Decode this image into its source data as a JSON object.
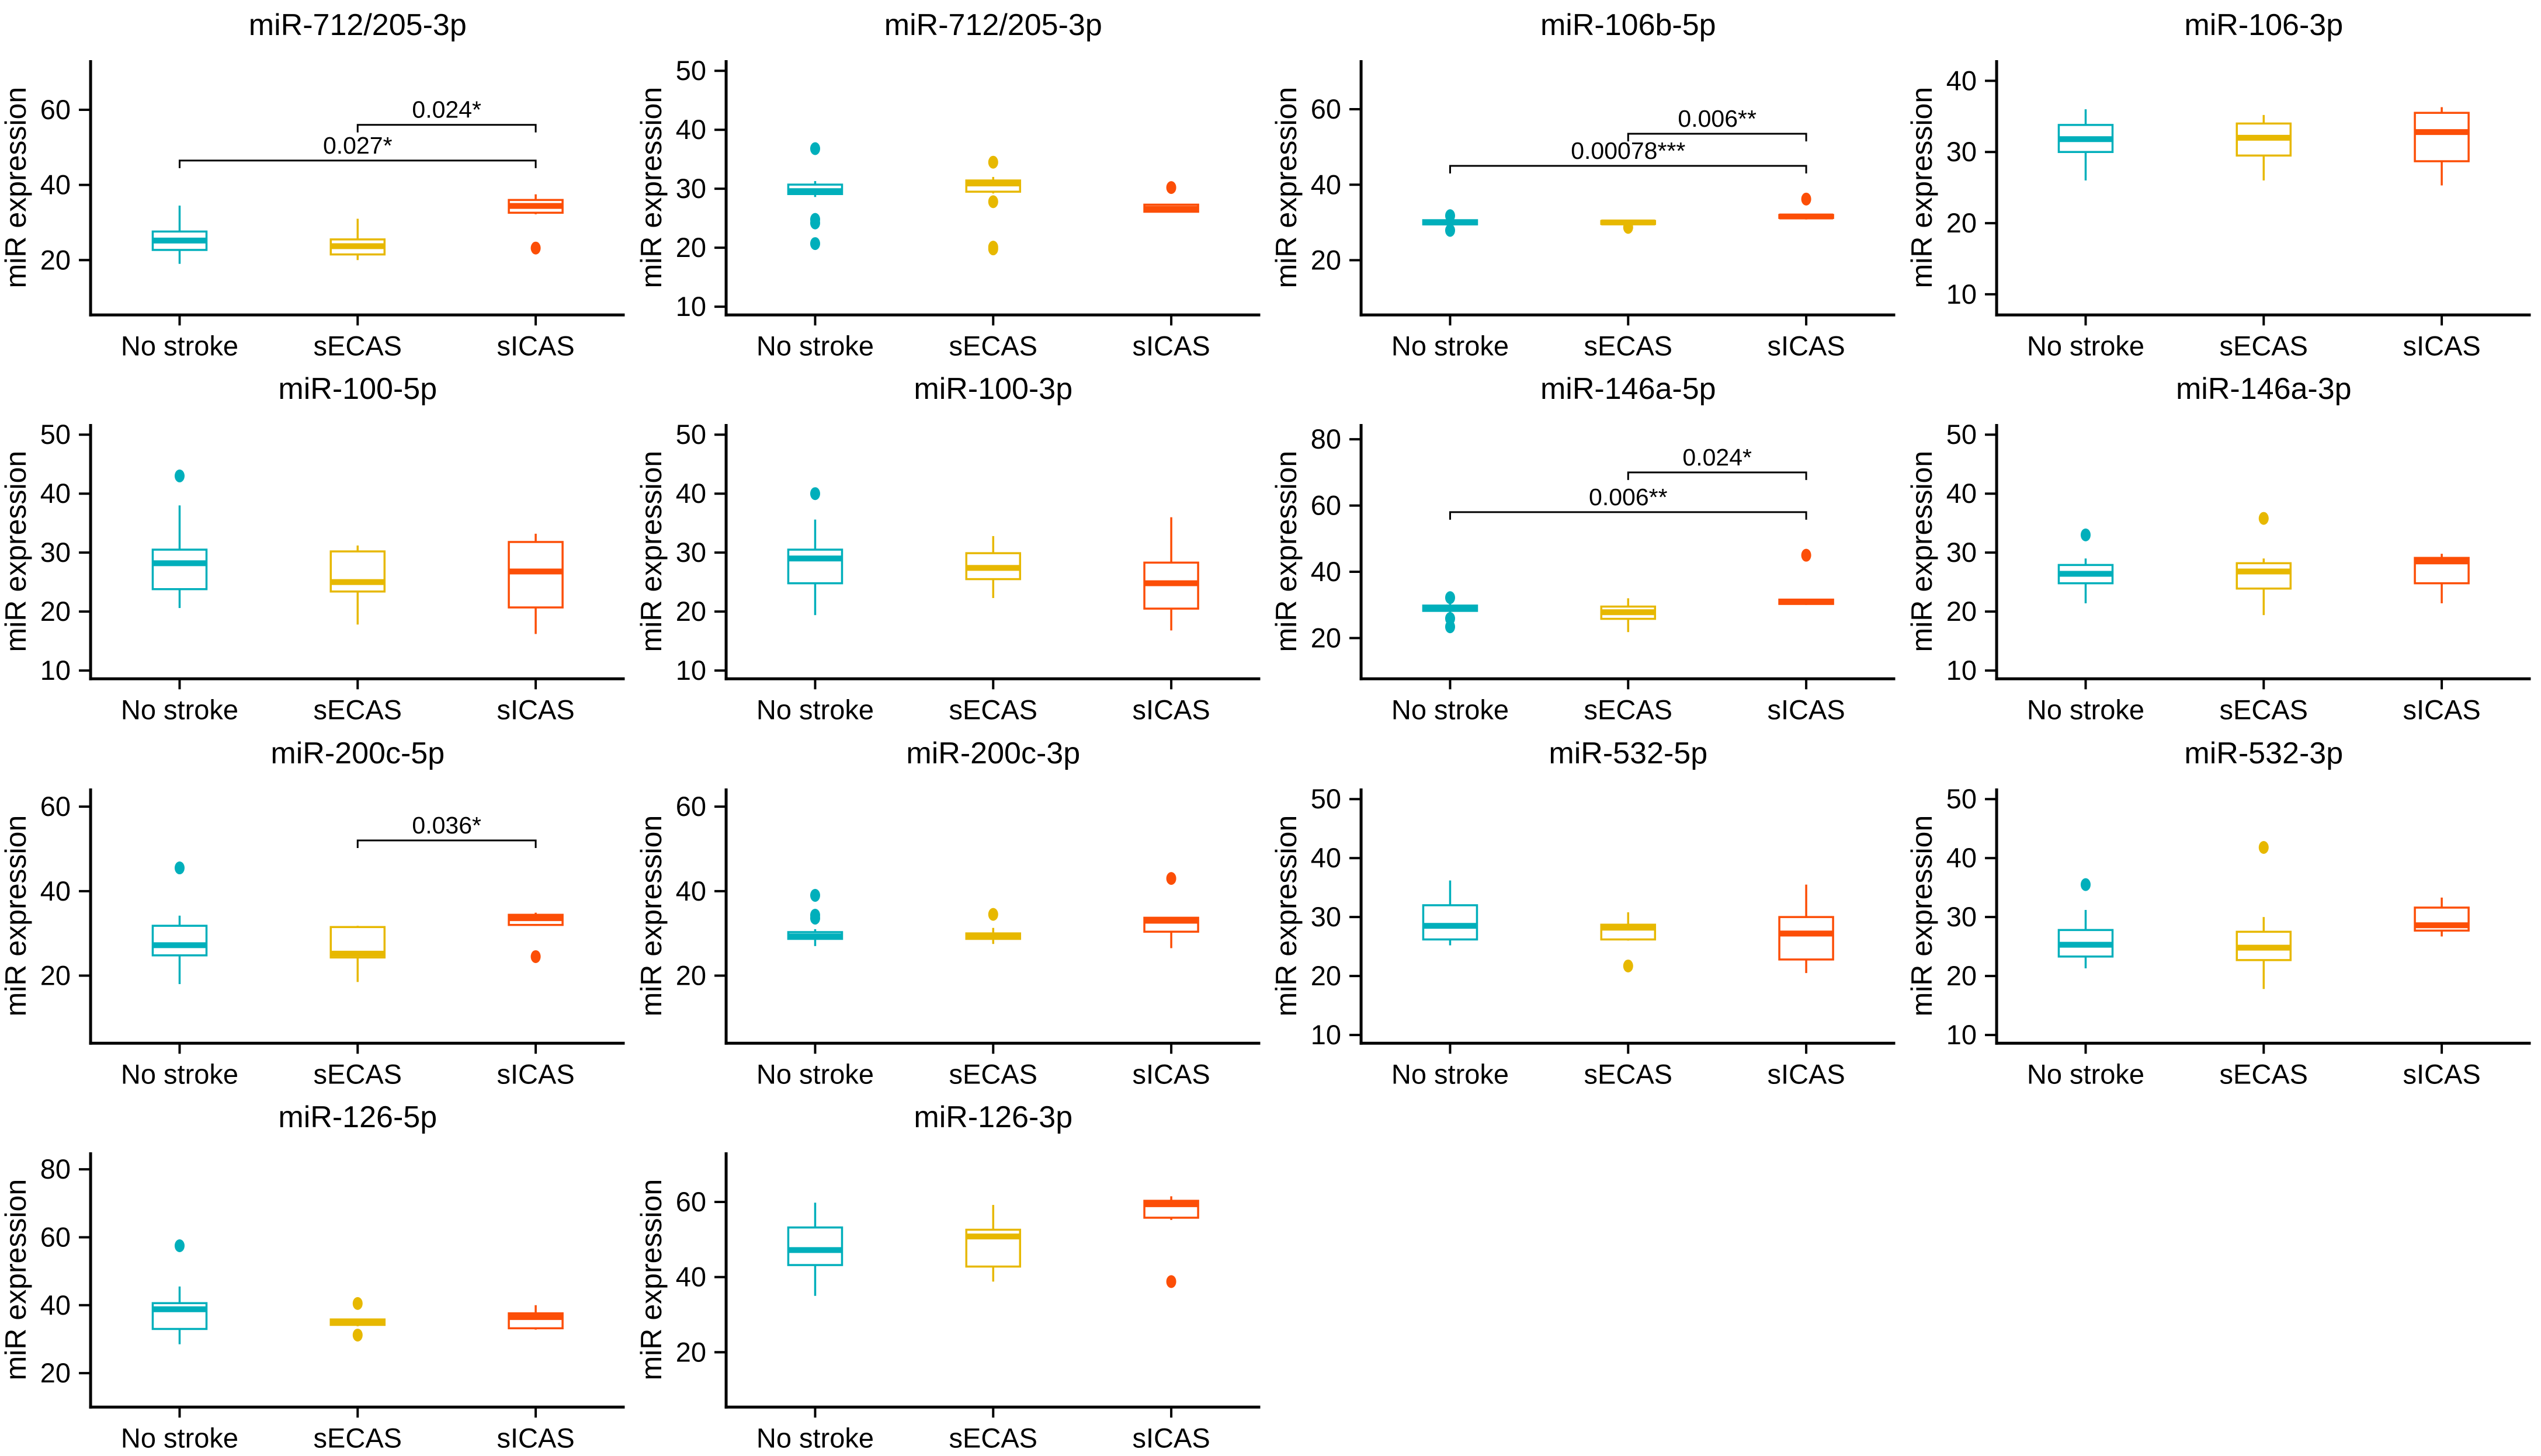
{
  "figure": {
    "background": "#ffffff",
    "axis_color": "#000000",
    "text_color": "#000000"
  },
  "chart_data": {
    "type": "boxplot-grid",
    "ylabel": "miR expression",
    "categories": [
      "No stroke",
      "sECAS",
      "sICAS"
    ],
    "series_colors": [
      "#00AFBB",
      "#E7B800",
      "#FC4E07"
    ],
    "grid": "off",
    "legend": "none",
    "panels": [
      {
        "title": "miR-712/205-3p",
        "ylim": [
          5.4,
          73.2
        ],
        "yticks": [
          20,
          40,
          60
        ],
        "boxes": [
          {
            "low": 19.0,
            "q1": 22.7,
            "median": 25.2,
            "q3": 27.6,
            "high": 34.5,
            "outliers": []
          },
          {
            "low": 20.0,
            "q1": 21.5,
            "median": 23.7,
            "q3": 25.5,
            "high": 31.0,
            "outliers": []
          },
          {
            "low": 32.2,
            "q1": 32.6,
            "median": 34.4,
            "q3": 36.0,
            "high": 37.5,
            "outliers": [
              23.2
            ]
          }
        ],
        "brackets": [
          {
            "from": 1,
            "to": 2,
            "y": 56.0,
            "label": "0.024*"
          },
          {
            "from": 0,
            "to": 2,
            "y": 46.5,
            "label": "0.027*"
          }
        ]
      },
      {
        "title": "miR-712/205-3p",
        "ylim": [
          8.6,
          51.8
        ],
        "yticks": [
          10,
          20,
          30,
          40,
          50
        ],
        "boxes": [
          {
            "low": 28.6,
            "q1": 29.1,
            "median": 29.6,
            "q3": 30.7,
            "high": 31.3,
            "outliers": [
              36.8,
              24.8,
              24.2,
              20.7
            ]
          },
          {
            "low": 29.2,
            "q1": 29.5,
            "median": 30.9,
            "q3": 31.4,
            "high": 32.0,
            "outliers": [
              34.5,
              27.8,
              20.1,
              19.8
            ]
          },
          {
            "low": 26.0,
            "q1": 26.1,
            "median": 26.6,
            "q3": 27.3,
            "high": 27.4,
            "outliers": [
              30.2
            ]
          }
        ],
        "brackets": []
      },
      {
        "title": "miR-106b-5p",
        "ylim": [
          5.5,
          73.0
        ],
        "yticks": [
          20,
          40,
          60
        ],
        "boxes": [
          {
            "low": 28.9,
            "q1": 29.5,
            "median": 30.0,
            "q3": 30.6,
            "high": 31.1,
            "outliers": [
              31.8,
              27.9
            ]
          },
          {
            "low": 29.1,
            "q1": 29.6,
            "median": 30.0,
            "q3": 30.4,
            "high": 30.6,
            "outliers": [
              28.7
            ]
          },
          {
            "low": 30.8,
            "q1": 31.2,
            "median": 31.6,
            "q3": 32.0,
            "high": 32.3,
            "outliers": [
              36.2
            ]
          }
        ],
        "brackets": [
          {
            "from": 1,
            "to": 2,
            "y": 53.5,
            "label": "0.006**"
          },
          {
            "from": 0,
            "to": 2,
            "y": 45.0,
            "label": "0.00078***"
          }
        ]
      },
      {
        "title": "miR-106-3p",
        "ylim": [
          7.1,
          42.9
        ],
        "yticks": [
          10,
          20,
          30,
          40
        ],
        "boxes": [
          {
            "low": 26.0,
            "q1": 30.0,
            "median": 31.8,
            "q3": 33.8,
            "high": 36.0,
            "outliers": []
          },
          {
            "low": 26.0,
            "q1": 29.5,
            "median": 32.0,
            "q3": 34.0,
            "high": 35.2,
            "outliers": []
          },
          {
            "low": 25.3,
            "q1": 28.7,
            "median": 32.8,
            "q3": 35.5,
            "high": 36.3,
            "outliers": []
          }
        ],
        "brackets": []
      },
      {
        "title": "miR-100-5p",
        "ylim": [
          8.6,
          51.8
        ],
        "yticks": [
          10,
          20,
          30,
          40,
          50
        ],
        "boxes": [
          {
            "low": 20.6,
            "q1": 23.8,
            "median": 28.2,
            "q3": 30.5,
            "high": 38.0,
            "outliers": [
              43.0
            ]
          },
          {
            "low": 17.8,
            "q1": 23.4,
            "median": 25.0,
            "q3": 30.2,
            "high": 31.2,
            "outliers": []
          },
          {
            "low": 16.2,
            "q1": 20.7,
            "median": 26.8,
            "q3": 31.8,
            "high": 33.2,
            "outliers": []
          }
        ],
        "brackets": []
      },
      {
        "title": "miR-100-3p",
        "ylim": [
          8.6,
          51.8
        ],
        "yticks": [
          10,
          20,
          30,
          40,
          50
        ],
        "boxes": [
          {
            "low": 19.4,
            "q1": 24.8,
            "median": 29.0,
            "q3": 30.5,
            "high": 35.6,
            "outliers": [
              40.0
            ]
          },
          {
            "low": 22.3,
            "q1": 25.5,
            "median": 27.4,
            "q3": 29.9,
            "high": 32.8,
            "outliers": []
          },
          {
            "low": 16.8,
            "q1": 20.5,
            "median": 24.8,
            "q3": 28.3,
            "high": 36.0,
            "outliers": []
          }
        ],
        "brackets": []
      },
      {
        "title": "miR-146a-5p",
        "ylim": [
          7.7,
          84.6
        ],
        "yticks": [
          20,
          40,
          60,
          80
        ],
        "boxes": [
          {
            "low": 27.6,
            "q1": 28.2,
            "median": 29.0,
            "q3": 29.8,
            "high": 30.4,
            "outliers": [
              32.2,
              25.9,
              23.4
            ]
          },
          {
            "low": 21.8,
            "q1": 25.8,
            "median": 27.8,
            "q3": 29.5,
            "high": 32.0,
            "outliers": []
          },
          {
            "low": 30.0,
            "q1": 30.3,
            "median": 30.9,
            "q3": 31.6,
            "high": 31.8,
            "outliers": [
              45.0
            ]
          }
        ],
        "brackets": [
          {
            "from": 1,
            "to": 2,
            "y": 70.0,
            "label": "0.024*"
          },
          {
            "from": 0,
            "to": 2,
            "y": 58.0,
            "label": "0.006**"
          }
        ]
      },
      {
        "title": "miR-146a-3p",
        "ylim": [
          8.6,
          51.8
        ],
        "yticks": [
          10,
          20,
          30,
          40,
          50
        ],
        "boxes": [
          {
            "low": 21.4,
            "q1": 24.8,
            "median": 26.4,
            "q3": 27.9,
            "high": 29.0,
            "outliers": [
              33.0
            ]
          },
          {
            "low": 19.4,
            "q1": 23.9,
            "median": 26.8,
            "q3": 28.2,
            "high": 29.0,
            "outliers": [
              35.8
            ]
          },
          {
            "low": 21.4,
            "q1": 24.8,
            "median": 28.5,
            "q3": 29.1,
            "high": 29.8,
            "outliers": []
          }
        ],
        "brackets": []
      },
      {
        "title": "miR-200c-5p",
        "ylim": [
          4.0,
          64.3
        ],
        "yticks": [
          20,
          40,
          60
        ],
        "boxes": [
          {
            "low": 18.0,
            "q1": 24.8,
            "median": 27.2,
            "q3": 31.8,
            "high": 34.2,
            "outliers": [
              45.5
            ]
          },
          {
            "low": 18.5,
            "q1": 24.3,
            "median": 25.2,
            "q3": 31.5,
            "high": 31.8,
            "outliers": []
          },
          {
            "low": 31.8,
            "q1": 32.0,
            "median": 33.6,
            "q3": 34.4,
            "high": 34.9,
            "outliers": [
              24.5
            ]
          }
        ],
        "brackets": [
          {
            "from": 1,
            "to": 2,
            "y": 52.0,
            "label": "0.036*"
          }
        ]
      },
      {
        "title": "miR-200c-3p",
        "ylim": [
          4.0,
          64.3
        ],
        "yticks": [
          20,
          40,
          60
        ],
        "boxes": [
          {
            "low": 27.0,
            "q1": 28.7,
            "median": 29.3,
            "q3": 30.3,
            "high": 31.0,
            "outliers": [
              39.0,
              34.3,
              33.6
            ]
          },
          {
            "low": 27.5,
            "q1": 28.7,
            "median": 29.2,
            "q3": 30.0,
            "high": 31.3,
            "outliers": [
              34.5
            ]
          },
          {
            "low": 26.5,
            "q1": 30.4,
            "median": 33.0,
            "q3": 33.7,
            "high": 33.9,
            "outliers": [
              43.0
            ]
          }
        ],
        "brackets": []
      },
      {
        "title": "miR-532-5p",
        "ylim": [
          8.6,
          51.8
        ],
        "yticks": [
          10,
          20,
          30,
          40,
          50
        ],
        "boxes": [
          {
            "low": 25.2,
            "q1": 26.2,
            "median": 28.5,
            "q3": 32.0,
            "high": 36.2,
            "outliers": []
          },
          {
            "low": 26.0,
            "q1": 26.2,
            "median": 28.2,
            "q3": 28.7,
            "high": 30.8,
            "outliers": [
              21.7
            ]
          },
          {
            "low": 20.5,
            "q1": 22.8,
            "median": 27.2,
            "q3": 30.0,
            "high": 35.5,
            "outliers": []
          }
        ],
        "brackets": []
      },
      {
        "title": "miR-532-3p",
        "ylim": [
          8.6,
          51.8
        ],
        "yticks": [
          10,
          20,
          30,
          40,
          50
        ],
        "boxes": [
          {
            "low": 21.3,
            "q1": 23.3,
            "median": 25.3,
            "q3": 27.8,
            "high": 31.2,
            "outliers": [
              35.5
            ]
          },
          {
            "low": 17.8,
            "q1": 22.7,
            "median": 24.8,
            "q3": 27.5,
            "high": 30.0,
            "outliers": [
              41.8
            ]
          },
          {
            "low": 26.7,
            "q1": 27.7,
            "median": 28.6,
            "q3": 31.6,
            "high": 33.3,
            "outliers": []
          }
        ],
        "brackets": []
      },
      {
        "title": "miR-126-5p",
        "ylim": [
          10.0,
          85.0
        ],
        "yticks": [
          20,
          40,
          60,
          80
        ],
        "boxes": [
          {
            "low": 28.5,
            "q1": 33.0,
            "median": 38.8,
            "q3": 40.6,
            "high": 45.5,
            "outliers": [
              57.5
            ]
          },
          {
            "low": 33.8,
            "q1": 34.2,
            "median": 35.0,
            "q3": 35.8,
            "high": 36.0,
            "outliers": [
              40.5,
              31.2
            ]
          },
          {
            "low": 32.8,
            "q1": 33.2,
            "median": 36.5,
            "q3": 37.6,
            "high": 40.0,
            "outliers": []
          }
        ],
        "brackets": []
      },
      {
        "title": "miR-126-3p",
        "ylim": [
          5.4,
          73.2
        ],
        "yticks": [
          20,
          40,
          60
        ],
        "boxes": [
          {
            "low": 35.0,
            "q1": 43.2,
            "median": 47.2,
            "q3": 53.2,
            "high": 59.8,
            "outliers": []
          },
          {
            "low": 38.8,
            "q1": 42.8,
            "median": 50.8,
            "q3": 52.6,
            "high": 59.2,
            "outliers": []
          },
          {
            "low": 55.2,
            "q1": 55.8,
            "median": 59.4,
            "q3": 60.3,
            "high": 61.5,
            "outliers": [
              38.8
            ]
          }
        ],
        "brackets": []
      }
    ]
  }
}
